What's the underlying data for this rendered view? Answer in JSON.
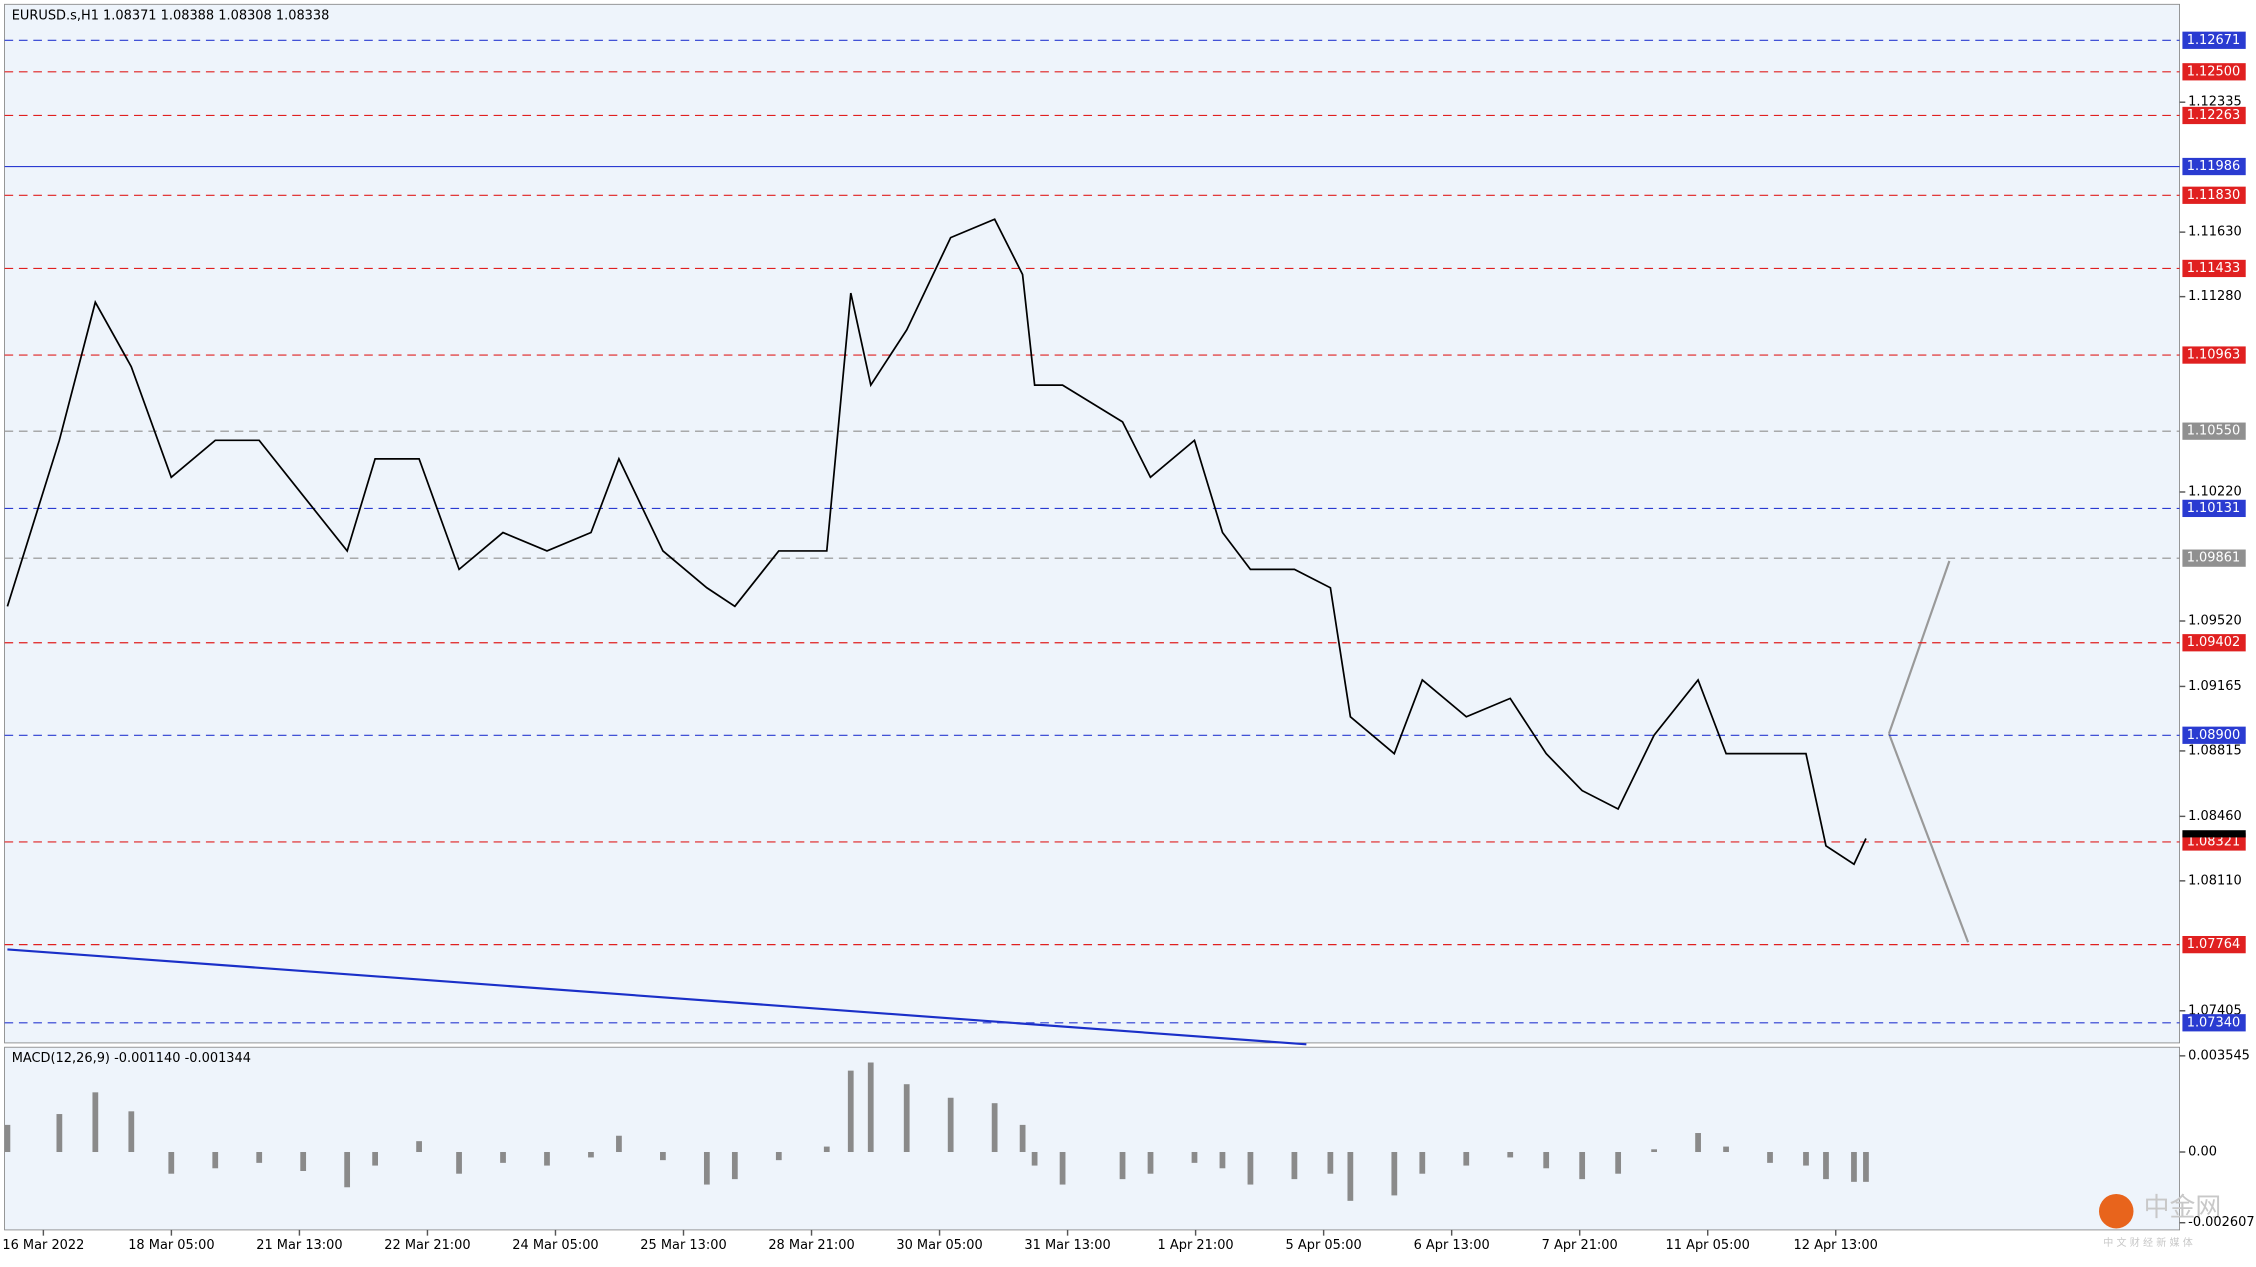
{
  "chart_data": {
    "type": "candlestick-screenshot",
    "header": "EURUSD.s,H1  1.08371 1.08388 1.08308 1.08338",
    "macd_label": "MACD(12,26,9) -0.001140 -0.001344",
    "watermark": "中金网",
    "watermark_sub": "中 文 财 经 新 媒 体",
    "current_price": 1.08338,
    "yticks": [
      1.12335,
      {
        "value": 1.1163,
        "label": "1.11630"
      },
      {
        "value": 1.1128,
        "label": "1.11280"
      },
      {
        "value": 1.1022,
        "label": "1.10220"
      },
      {
        "value": 1.0952,
        "label": "1.09520"
      },
      1.09165,
      1.08815,
      {
        "value": 1.0846,
        "label": "1.08460"
      },
      {
        "value": 1.0811,
        "label": "1.08110"
      },
      {
        "value": 1.07405,
        "label": "1.07405"
      }
    ],
    "levels": [
      {
        "value": 1.12671,
        "color": "#2a3bd1"
      },
      {
        "value": {
          "value": 1.125,
          "label": "1.12500"
        },
        "color": "#e02020"
      },
      {
        "value": 1.12263,
        "color": "#e02020"
      },
      {
        "value": 1.11986,
        "color": "#2a3bd1"
      },
      {
        "value": {
          "value": 1.1183,
          "label": "1.11830"
        },
        "color": "#e02020"
      },
      {
        "value": 1.11433,
        "color": "#e02020"
      },
      {
        "value": 1.10963,
        "color": "#e02020"
      },
      {
        "value": {
          "value": 1.1055,
          "label": "1.10550"
        },
        "color": "#909090"
      },
      {
        "value": 1.10131,
        "color": "#2a3bd1"
      },
      {
        "value": 1.09861,
        "color": "#909090"
      },
      {
        "value": 1.09402,
        "color": "#e02020"
      },
      {
        "value": {
          "value": 1.089,
          "label": "1.08900"
        },
        "color": "#2a3bd1"
      },
      {
        "value": 1.08321,
        "color": "#e02020"
      },
      {
        "value": 1.07764,
        "color": "#e02020"
      },
      {
        "value": {
          "value": 1.0734,
          "label": "1.07340"
        },
        "color": "#2a3bd1"
      }
    ],
    "ylim": [
      1.0734,
      1.12671
    ],
    "macd_ylim": [
      -0.002607,
      0.003545
    ],
    "macd_yticks": [
      0.003545,
      {
        "value": 0,
        "label": "0.00"
      },
      -0.002607
    ],
    "time_labels": [
      "16 Mar 2022",
      "18 Mar 05:00",
      "21 Mar 13:00",
      "22 Mar 21:00",
      "24 Mar 05:00",
      "25 Mar 13:00",
      "28 Mar 21:00",
      "30 Mar 05:00",
      "31 Mar 13:00",
      "1 Apr 21:00",
      "5 Apr 05:00",
      "6 Apr 13:00",
      "7 Apr 21:00",
      "11 Apr 05:00",
      "12 Apr 13:00"
    ],
    "xlim": [
      0,
      465
    ],
    "x": [
      0,
      13,
      22,
      31,
      41,
      52,
      63,
      74,
      85,
      92,
      103,
      113,
      124,
      135,
      146,
      153,
      164,
      175,
      182,
      193,
      205,
      211,
      216,
      225,
      236,
      247,
      254,
      257,
      264,
      279,
      286,
      297,
      304,
      311,
      322,
      331,
      336,
      347,
      354,
      365,
      376,
      385,
      394,
      403,
      412,
      423,
      430,
      441,
      450,
      455,
      462,
      465
    ],
    "close": [
      1.096,
      1.105,
      1.1125,
      1.109,
      1.103,
      1.105,
      1.105,
      1.102,
      1.099,
      1.104,
      1.104,
      1.098,
      1.1,
      1.099,
      1.1,
      1.104,
      1.099,
      1.097,
      1.096,
      1.099,
      1.099,
      1.113,
      1.108,
      1.111,
      1.116,
      1.117,
      1.114,
      1.108,
      1.108,
      1.106,
      1.103,
      1.105,
      1.1,
      1.098,
      1.098,
      1.097,
      1.09,
      1.088,
      1.092,
      1.09,
      1.091,
      1.088,
      1.086,
      1.085,
      1.089,
      1.092,
      1.088,
      1.088,
      1.088,
      1.083,
      1.082,
      1.0834
    ],
    "macd": [
      0.001,
      0.0014,
      0.0022,
      0.0015,
      -0.0008,
      -0.0006,
      -0.0004,
      -0.0007,
      -0.0013,
      -0.0005,
      0.0004,
      -0.0008,
      -0.0004,
      -0.0005,
      -0.0002,
      0.0006,
      -0.0003,
      -0.0012,
      -0.001,
      -0.0003,
      0.0002,
      0.003,
      0.0033,
      0.0025,
      0.002,
      0.0018,
      0.001,
      -0.0005,
      -0.0012,
      -0.001,
      -0.0008,
      -0.0004,
      -0.0006,
      -0.0012,
      -0.001,
      -0.0008,
      -0.0018,
      -0.0016,
      -0.0008,
      -0.0005,
      -0.0002,
      -0.0006,
      -0.001,
      -0.0008,
      0.0001,
      0.0007,
      0.0002,
      -0.0004,
      -0.0005,
      -0.001,
      -0.0011,
      -0.0011
    ]
  }
}
